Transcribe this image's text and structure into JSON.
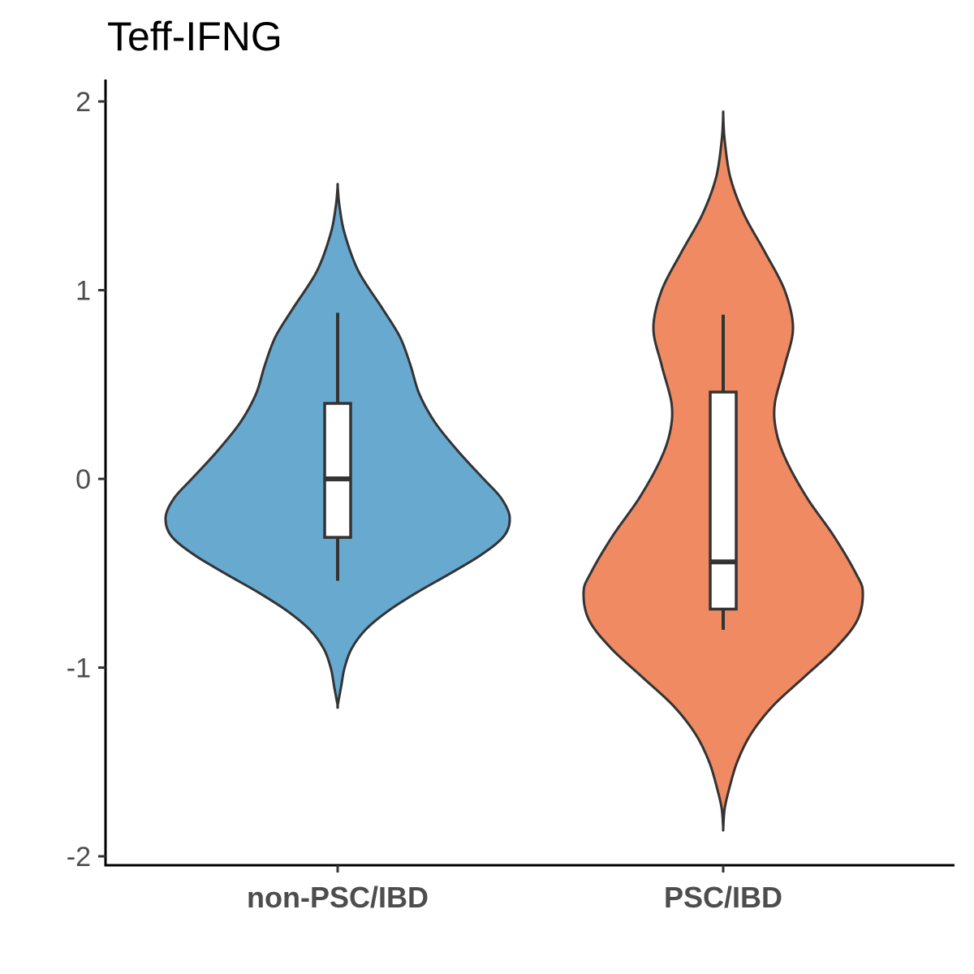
{
  "chart_data": {
    "type": "violin",
    "title": "Teff-IFNG",
    "xlabel": "",
    "ylabel": "",
    "ylim": [
      -2.05,
      2.12
    ],
    "yticks": [
      {
        "value": 2,
        "label": "2"
      },
      {
        "value": 1,
        "label": "1"
      },
      {
        "value": 0,
        "label": "0"
      },
      {
        "value": -1,
        "label": "-1"
      },
      {
        "value": -2,
        "label": "-2"
      }
    ],
    "grid": false,
    "legend": "none",
    "categories": [
      "non-PSC/IBD",
      "PSC/IBD"
    ],
    "groups": [
      {
        "category": "non-PSC/IBD",
        "color": "#67A9CF",
        "box": {
          "whisker_low": -0.54,
          "q1": -0.31,
          "median": 0.0,
          "q3": 0.4,
          "whisker_high": 0.88
        },
        "violin": {
          "y_min": -1.2,
          "y_max": 1.55,
          "max_half_width": 1.0,
          "profile": [
            [
              1.55,
              0.0
            ],
            [
              1.45,
              0.01
            ],
            [
              1.3,
              0.04
            ],
            [
              1.1,
              0.12
            ],
            [
              0.9,
              0.26
            ],
            [
              0.75,
              0.36
            ],
            [
              0.6,
              0.42
            ],
            [
              0.45,
              0.47
            ],
            [
              0.3,
              0.56
            ],
            [
              0.15,
              0.69
            ],
            [
              0.0,
              0.84
            ],
            [
              -0.1,
              0.94
            ],
            [
              -0.2,
              0.99
            ],
            [
              -0.3,
              0.96
            ],
            [
              -0.4,
              0.83
            ],
            [
              -0.5,
              0.65
            ],
            [
              -0.6,
              0.46
            ],
            [
              -0.7,
              0.29
            ],
            [
              -0.8,
              0.16
            ],
            [
              -0.9,
              0.08
            ],
            [
              -1.0,
              0.04
            ],
            [
              -1.1,
              0.02
            ],
            [
              -1.2,
              0.0
            ]
          ]
        }
      },
      {
        "category": "PSC/IBD",
        "color": "#EF8A62",
        "box": {
          "whisker_low": -0.8,
          "q1": -0.69,
          "median": -0.44,
          "q3": 0.46,
          "whisker_high": 0.87
        },
        "violin": {
          "y_min": -1.85,
          "y_max": 1.93,
          "max_half_width": 1.0,
          "profile": [
            [
              1.93,
              0.0
            ],
            [
              1.8,
              0.01
            ],
            [
              1.6,
              0.05
            ],
            [
              1.4,
              0.15
            ],
            [
              1.2,
              0.3
            ],
            [
              1.0,
              0.44
            ],
            [
              0.8,
              0.5
            ],
            [
              0.6,
              0.44
            ],
            [
              0.4,
              0.37
            ],
            [
              0.25,
              0.38
            ],
            [
              0.1,
              0.45
            ],
            [
              -0.1,
              0.6
            ],
            [
              -0.3,
              0.79
            ],
            [
              -0.5,
              0.95
            ],
            [
              -0.6,
              1.0
            ],
            [
              -0.75,
              0.96
            ],
            [
              -0.9,
              0.8
            ],
            [
              -1.05,
              0.58
            ],
            [
              -1.2,
              0.36
            ],
            [
              -1.35,
              0.2
            ],
            [
              -1.5,
              0.1
            ],
            [
              -1.65,
              0.04
            ],
            [
              -1.75,
              0.01
            ],
            [
              -1.85,
              0.0
            ]
          ]
        }
      }
    ]
  }
}
